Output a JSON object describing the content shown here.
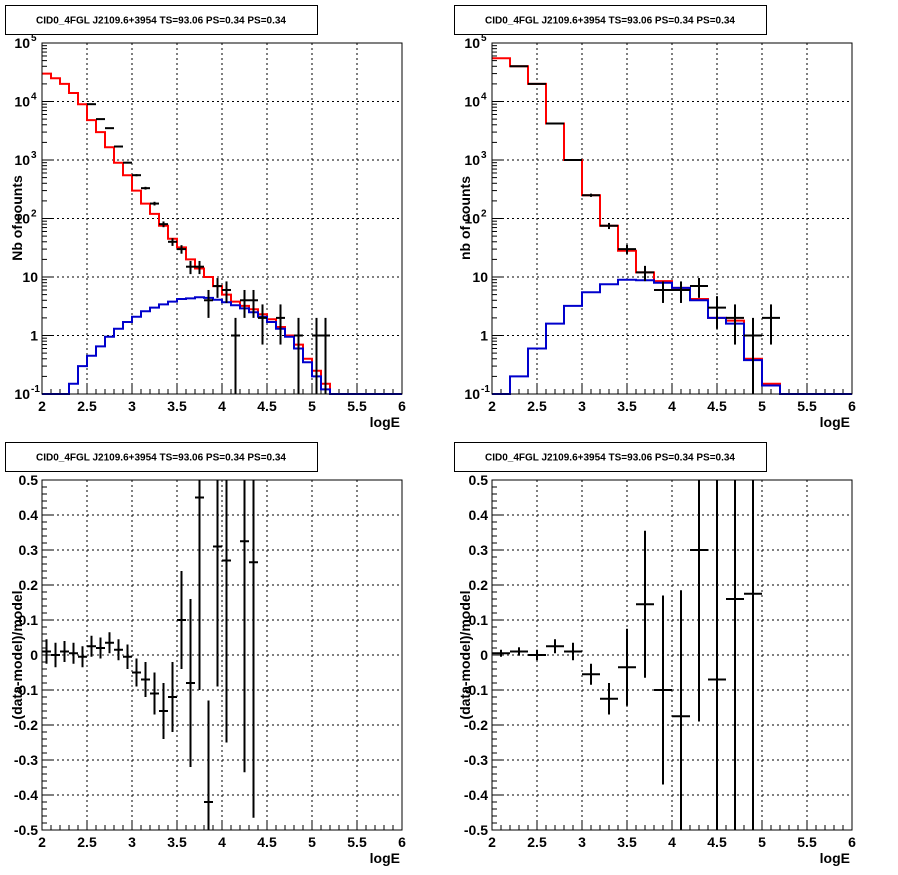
{
  "colors": {
    "data": "#000000",
    "total_model": "#ff0000",
    "source_model": "#0000cc",
    "grid": "#000000"
  },
  "chart_data": [
    {
      "type": "step-histogram",
      "title": "CID0_4FGL J2109.6+3954 TS=93.06 PS=0.34 PS=0.34",
      "xlabel": "logE",
      "ylabel": "Nb of counts",
      "xlim": [
        2,
        6
      ],
      "ylim": [
        0.1,
        100000
      ],
      "yscale": "log",
      "grid": true,
      "xticks": [
        "2",
        "2.5",
        "3",
        "3.5",
        "4",
        "4.5",
        "5",
        "5.5",
        "6"
      ],
      "yticks": [
        {
          "value": 0.1,
          "base": "10",
          "exp": "-1"
        },
        {
          "value": 1,
          "base": "1",
          "exp": ""
        },
        {
          "value": 10,
          "base": "10",
          "exp": ""
        },
        {
          "value": 100,
          "base": "10",
          "exp": "2"
        },
        {
          "value": 1000,
          "base": "10",
          "exp": "3"
        },
        {
          "value": 10000,
          "base": "10",
          "exp": "4"
        },
        {
          "value": 100000,
          "base": "10",
          "exp": "5"
        }
      ],
      "bin_edges": [
        2.0,
        2.1,
        2.2,
        2.3,
        2.4,
        2.5,
        2.6,
        2.7,
        2.8,
        2.9,
        3.0,
        3.1,
        3.2,
        3.3,
        3.4,
        3.5,
        3.6,
        3.7,
        3.8,
        3.9,
        4.0,
        4.1,
        4.2,
        4.3,
        4.4,
        4.5,
        4.6,
        4.7,
        4.8,
        4.9,
        5.0,
        5.1,
        5.2,
        5.3,
        5.4,
        5.5,
        5.6,
        5.7,
        5.8,
        5.9,
        6.0
      ],
      "series": [
        {
          "name": "",
          "kind": "step",
          "color": "#ff0000",
          "values": [
            30000,
            25000,
            20000,
            14000,
            9000,
            4800,
            3000,
            1650,
            900,
            550,
            300,
            180,
            120,
            75,
            45,
            32,
            20,
            14,
            10,
            7,
            5,
            3.8,
            3.2,
            2.8,
            2.3,
            1.9,
            1.4,
            1.0,
            0.7,
            0.4,
            0.25,
            0.15,
            0.1,
            0.1,
            0.1,
            0.1,
            0.1,
            0.1,
            0.1,
            0.1
          ]
        },
        {
          "name": "",
          "kind": "step",
          "color": "#0000cc",
          "values": [
            0.1,
            0.1,
            0.1,
            0.15,
            0.3,
            0.45,
            0.65,
            0.95,
            1.3,
            1.7,
            2.1,
            2.6,
            3.0,
            3.4,
            3.8,
            4.2,
            4.3,
            4.5,
            4.4,
            4.1,
            3.7,
            3.3,
            2.9,
            2.5,
            2.1,
            1.7,
            1.3,
            0.95,
            0.6,
            0.35,
            0.2,
            0.12,
            0.1,
            0.1,
            0.1,
            0.1,
            0.1,
            0.1,
            0.1,
            0.1
          ]
        },
        {
          "name": "",
          "kind": "points",
          "color": "#000000",
          "x": [
            2.55,
            2.65,
            2.75,
            2.85,
            2.95,
            3.05,
            3.15,
            3.25,
            3.35,
            3.45,
            3.55,
            3.65,
            3.75,
            3.85,
            3.95,
            4.05,
            4.15,
            4.25,
            4.35,
            4.45,
            4.65,
            4.85,
            5.05,
            5.15
          ],
          "y": [
            9000,
            5000,
            3500,
            1700,
            900,
            550,
            330,
            180,
            80,
            40,
            30,
            15,
            15,
            4,
            7,
            6,
            1,
            4,
            4,
            2,
            2,
            1,
            1,
            1
          ],
          "yerr_lo": [
            95,
            70,
            60,
            40,
            30,
            23,
            18,
            13,
            9,
            6,
            5,
            3.8,
            3.8,
            2,
            2.6,
            2.4,
            0.9,
            2,
            2,
            1.3,
            1.3,
            0.9,
            0.9,
            0.9
          ],
          "yerr_hi": [
            95,
            70,
            60,
            40,
            30,
            23,
            18,
            13,
            9,
            6,
            5,
            3.8,
            3.8,
            2,
            2.6,
            2.4,
            1,
            2,
            2,
            1.4,
            1.4,
            1,
            1,
            1
          ]
        }
      ]
    },
    {
      "type": "step-histogram",
      "title": "CID0_4FGL J2109.6+3954 TS=93.06 PS=0.34 PS=0.34",
      "xlabel": "logE",
      "ylabel": "nb of counts",
      "xlim": [
        2,
        6
      ],
      "ylim": [
        0.1,
        100000
      ],
      "yscale": "log",
      "grid": true,
      "xticks": [
        "2",
        "2.5",
        "3",
        "3.5",
        "4",
        "4.5",
        "5",
        "5.5",
        "6"
      ],
      "yticks": [
        {
          "value": 0.1,
          "base": "10",
          "exp": "-1"
        },
        {
          "value": 1,
          "base": "1",
          "exp": ""
        },
        {
          "value": 10,
          "base": "10",
          "exp": ""
        },
        {
          "value": 100,
          "base": "10",
          "exp": "2"
        },
        {
          "value": 1000,
          "base": "10",
          "exp": "3"
        },
        {
          "value": 10000,
          "base": "10",
          "exp": "4"
        },
        {
          "value": 100000,
          "base": "10",
          "exp": "5"
        }
      ],
      "bin_edges": [
        2.0,
        2.2,
        2.4,
        2.6,
        2.8,
        3.0,
        3.2,
        3.4,
        3.6,
        3.8,
        4.0,
        4.2,
        4.4,
        4.6,
        4.8,
        5.0,
        5.2,
        5.4,
        5.6,
        5.8,
        6.0
      ],
      "series": [
        {
          "name": "",
          "kind": "step",
          "color": "#ff0000",
          "values": [
            55000,
            40000,
            20000,
            4200,
            1000,
            250,
            75,
            28,
            12,
            8.5,
            6.5,
            4.2,
            2.0,
            1.8,
            0.4,
            0.15,
            0.1,
            0.1,
            0.1,
            0.1
          ]
        },
        {
          "name": "",
          "kind": "step",
          "color": "#0000cc",
          "values": [
            0.1,
            0.2,
            0.6,
            1.6,
            3.2,
            5.5,
            7.5,
            9.0,
            8.8,
            8.0,
            6.5,
            4.0,
            2.0,
            1.6,
            0.38,
            0.14,
            0.1,
            0.1,
            0.1,
            0.1
          ]
        },
        {
          "name": "",
          "kind": "points",
          "color": "#000000",
          "x": [
            2.3,
            2.5,
            2.7,
            2.9,
            3.1,
            3.3,
            3.5,
            3.7,
            3.9,
            4.1,
            4.3,
            4.5,
            4.7,
            4.9,
            5.1
          ],
          "y": [
            40000,
            20000,
            4200,
            1000,
            250,
            75,
            30,
            12,
            6,
            6,
            7,
            3,
            2,
            1,
            2
          ],
          "yerr_lo": [
            200,
            140,
            65,
            32,
            16,
            9,
            5.5,
            3.5,
            2.4,
            2.4,
            2.6,
            1.7,
            1.3,
            0.9,
            1.3
          ],
          "yerr_hi": [
            200,
            140,
            65,
            32,
            16,
            9,
            5.5,
            3.5,
            2.4,
            2.4,
            2.6,
            1.7,
            1.4,
            1,
            1.4
          ]
        }
      ]
    },
    {
      "type": "scatter",
      "title": "CID0_4FGL J2109.6+3954 TS=93.06 PS=0.34 PS=0.34",
      "xlabel": "logE",
      "ylabel": "(data-model)/model",
      "xlim": [
        2,
        6
      ],
      "ylim": [
        -0.5,
        0.5
      ],
      "grid": true,
      "xticks": [
        "2",
        "2.5",
        "3",
        "3.5",
        "4",
        "4.5",
        "5",
        "5.5",
        "6"
      ],
      "yticks": [
        "-0.5",
        "-0.4",
        "-0.3",
        "-0.2",
        "-0.1",
        "0",
        "0.1",
        "0.2",
        "0.3",
        "0.4",
        "0.5"
      ],
      "series": [
        {
          "name": "",
          "kind": "points",
          "color": "#000000",
          "x": [
            2.05,
            2.15,
            2.25,
            2.35,
            2.45,
            2.55,
            2.65,
            2.75,
            2.85,
            2.95,
            3.05,
            3.15,
            3.25,
            3.35,
            3.45,
            3.55,
            3.65,
            3.75,
            3.85,
            3.95,
            4.05,
            4.25,
            4.35
          ],
          "y": [
            0.01,
            0.0,
            0.01,
            0.005,
            -0.005,
            0.025,
            0.02,
            0.035,
            0.015,
            -0.005,
            -0.05,
            -0.07,
            -0.11,
            -0.16,
            -0.12,
            0.1,
            -0.08,
            0.45,
            -0.42,
            0.31,
            0.27,
            0.325,
            0.265
          ],
          "yerr": [
            0.035,
            0.035,
            0.03,
            0.03,
            0.03,
            0.03,
            0.03,
            0.03,
            0.03,
            0.035,
            0.04,
            0.05,
            0.06,
            0.08,
            0.1,
            0.14,
            0.24,
            0.55,
            0.29,
            0.4,
            0.52,
            0.66,
            0.73
          ]
        }
      ]
    },
    {
      "type": "scatter",
      "title": "CID0_4FGL J2109.6+3954 TS=93.06 PS=0.34 PS=0.34",
      "xlabel": "logE",
      "ylabel": "(data-model)/model",
      "xlim": [
        2,
        6
      ],
      "ylim": [
        -0.5,
        0.5
      ],
      "grid": true,
      "xticks": [
        "2",
        "2.5",
        "3",
        "3.5",
        "4",
        "4.5",
        "5",
        "5.5",
        "6"
      ],
      "yticks": [
        "-0.5",
        "-0.4",
        "-0.3",
        "-0.2",
        "-0.1",
        "0",
        "0.1",
        "0.2",
        "0.3",
        "0.4",
        "0.5"
      ],
      "series": [
        {
          "name": "",
          "kind": "points",
          "color": "#000000",
          "x": [
            2.1,
            2.3,
            2.5,
            2.7,
            2.9,
            3.1,
            3.3,
            3.5,
            3.7,
            3.9,
            4.1,
            4.3,
            4.5,
            4.7,
            4.9
          ],
          "y": [
            0.005,
            0.01,
            0.0,
            0.025,
            0.01,
            -0.055,
            -0.125,
            -0.035,
            0.145,
            -0.1,
            -0.175,
            0.3,
            -0.07,
            0.16,
            0.175
          ],
          "yerr": [
            0.01,
            0.012,
            0.015,
            0.02,
            0.025,
            0.03,
            0.045,
            0.11,
            0.21,
            0.27,
            0.36,
            0.49,
            0.59,
            0.72,
            1.0
          ]
        }
      ]
    }
  ]
}
